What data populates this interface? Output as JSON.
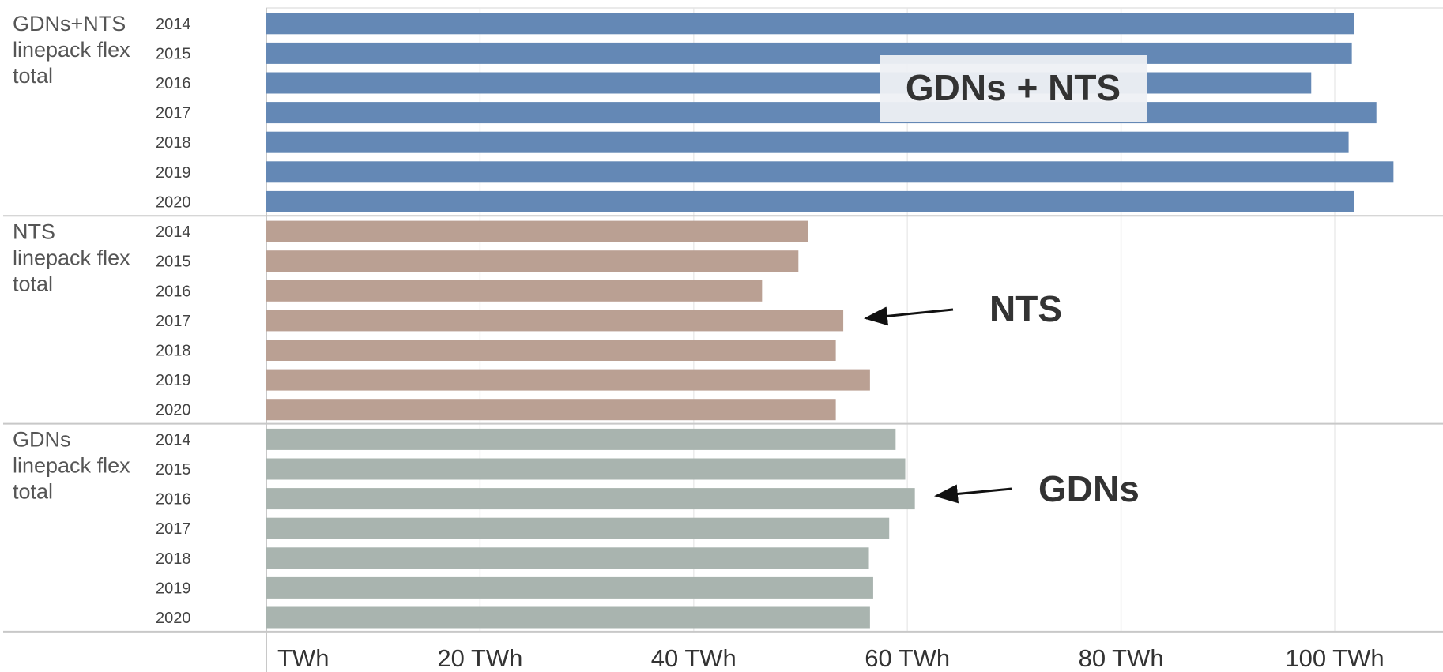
{
  "chart_data": {
    "type": "bar",
    "orientation": "horizontal",
    "x_ticks": [
      "TWh",
      "20 TWh",
      "40 TWh",
      "60 TWh",
      "80 TWh",
      "100 TWh"
    ],
    "xlim": [
      0,
      110
    ],
    "grid": true,
    "colors": {
      "GDNs+NTS": "#6488b5",
      "NTS": "#baa093",
      "GDNs": "#a9b4af"
    },
    "groups": [
      {
        "label": [
          "GDNs+NTS",
          "linepack flex",
          "total"
        ],
        "key": "GDNs+NTS",
        "categories": [
          "2014",
          "2015",
          "2016",
          "2017",
          "2018",
          "2019",
          "2020"
        ],
        "values": [
          101.8,
          101.6,
          97.8,
          103.9,
          101.3,
          105.5,
          101.8
        ]
      },
      {
        "label": [
          "NTS",
          "linepack flex",
          "total"
        ],
        "key": "NTS",
        "categories": [
          "2014",
          "2015",
          "2016",
          "2017",
          "2018",
          "2019",
          "2020"
        ],
        "values": [
          50.7,
          49.8,
          46.4,
          54.0,
          53.3,
          56.5,
          53.3
        ]
      },
      {
        "label": [
          "GDNs",
          "linepack flex",
          "total"
        ],
        "key": "GDNs",
        "categories": [
          "2014",
          "2015",
          "2016",
          "2017",
          "2018",
          "2019",
          "2020"
        ],
        "values": [
          58.9,
          59.8,
          60.7,
          58.3,
          56.4,
          56.8,
          56.5
        ]
      }
    ],
    "annotations": [
      {
        "text": "GDNs + NTS",
        "boxed": true
      },
      {
        "text": "NTS",
        "arrow_to": {
          "group": "NTS",
          "year": "2017"
        }
      },
      {
        "text": "GDNs",
        "arrow_to": {
          "group": "GDNs",
          "year": "2016"
        }
      }
    ]
  }
}
